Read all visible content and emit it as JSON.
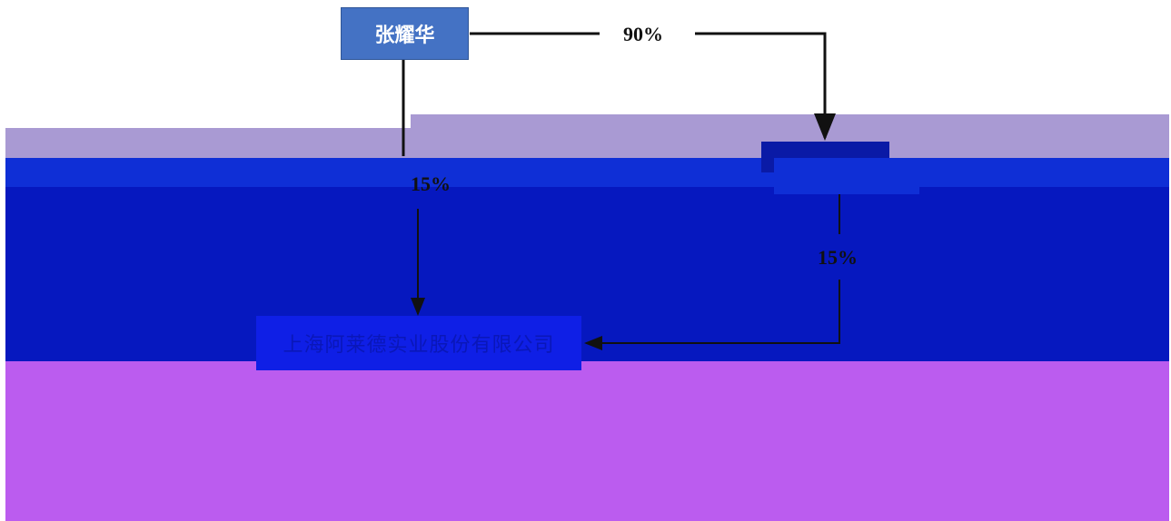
{
  "colors": {
    "band_lavender": "#a99ad3",
    "band_blue": "#0f2fd6",
    "band_navy": "#0618bf",
    "band_purple": "#bb5cef",
    "node_top": "#4472c4",
    "node_mid": "#0a1aa6",
    "node_company": "#0f1fe6",
    "line": "#111111"
  },
  "nodes": {
    "person": "张耀华",
    "holding": "",
    "company": "上海阿莱德实业股份有限公司"
  },
  "edges": {
    "person_to_holding": "90%",
    "person_to_company": "15%",
    "holding_to_company": "15%"
  }
}
